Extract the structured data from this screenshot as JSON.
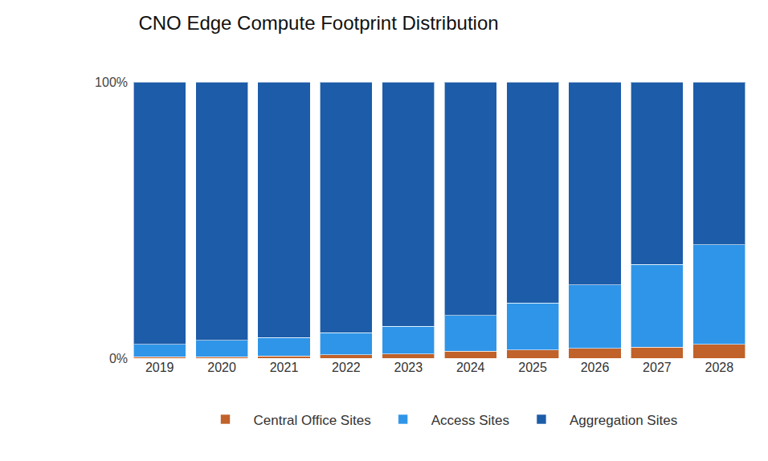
{
  "chart_data": {
    "type": "bar",
    "title": "CNO Edge Compute Footprint Distribution",
    "categories": [
      "2019",
      "2020",
      "2021",
      "2022",
      "2023",
      "2024",
      "2025",
      "2026",
      "2027",
      "2028"
    ],
    "series": [
      {
        "name": "Central Office Sites",
        "color": "#c0622a",
        "values": [
          0.5,
          0.5,
          0.8,
          1.2,
          1.5,
          2.5,
          3,
          3.5,
          4,
          5
        ]
      },
      {
        "name": "Access Sites",
        "color": "#2f95e8",
        "values": [
          4.5,
          6,
          6.7,
          8,
          10,
          13,
          17,
          23,
          30,
          36
        ]
      },
      {
        "name": "Aggregation Sites",
        "color": "#1c5ca8",
        "values": [
          95,
          93.5,
          92.5,
          90.8,
          88.5,
          84.5,
          80,
          73.5,
          66,
          59
        ]
      }
    ],
    "ylim": [
      0,
      100
    ],
    "yticks": [
      {
        "value": 0,
        "label": "0%"
      },
      {
        "value": 100,
        "label": "100%"
      }
    ],
    "grid": false,
    "stacked": true,
    "legend": "bottom"
  }
}
